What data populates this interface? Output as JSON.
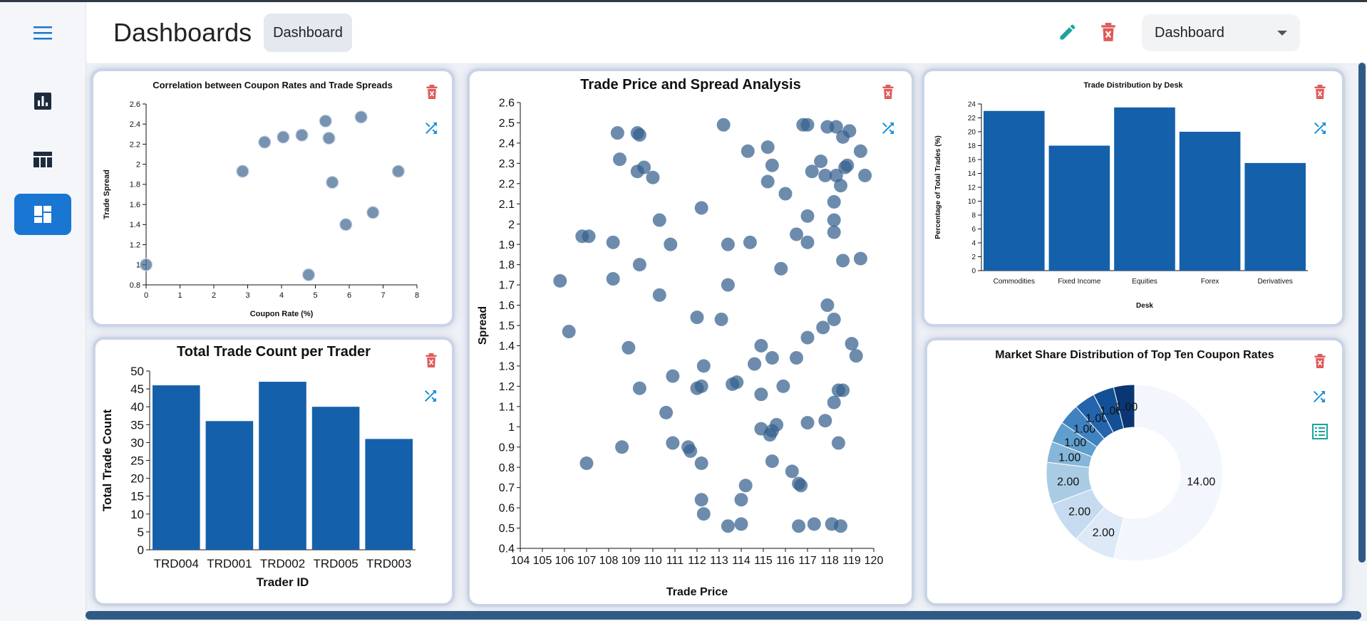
{
  "header": {
    "title": "Dashboards",
    "chip_label": "Dashboard",
    "select_value": "Dashboard"
  },
  "sidebar": {
    "items": [
      {
        "name": "menu-icon"
      },
      {
        "name": "bar-chart-icon"
      },
      {
        "name": "table-icon"
      },
      {
        "name": "dashboard-icon",
        "active": true
      }
    ]
  },
  "colors": {
    "accent": "#1976d2",
    "bar": "#1560aa",
    "point": "#4a6f97",
    "delete": "#e05a5a",
    "shuffle": "#1a8fd6",
    "edit": "#1ba39c"
  },
  "charts": {
    "coupon": {
      "chart_data": {
        "type": "scatter",
        "title": "Correlation between Coupon Rates and Trade Spreads",
        "xlabel": "Coupon Rate (%)",
        "ylabel": "Trade Spread",
        "xlim": [
          0,
          8
        ],
        "ylim": [
          0.8,
          2.6
        ],
        "xticks": [
          "0",
          "1",
          "2",
          "3",
          "4",
          "5",
          "6",
          "7",
          "8"
        ],
        "yticks": [
          "0.8",
          "1",
          "1.2",
          "1.4",
          "1.6",
          "1.8",
          "2",
          "2.2",
          "2.4",
          "2.6"
        ],
        "points": [
          [
            0,
            1.0
          ],
          [
            2.85,
            1.93
          ],
          [
            3.5,
            2.22
          ],
          [
            4.05,
            2.27
          ],
          [
            4.6,
            2.29
          ],
          [
            4.8,
            0.9
          ],
          [
            5.3,
            2.43
          ],
          [
            5.4,
            2.26
          ],
          [
            5.5,
            1.82
          ],
          [
            5.9,
            1.4
          ],
          [
            6.35,
            2.47
          ],
          [
            6.7,
            1.52
          ],
          [
            7.45,
            1.93
          ]
        ]
      }
    },
    "price": {
      "chart_data": {
        "type": "scatter",
        "title": "Trade Price and Spread Analysis",
        "xlabel": "Trade Price",
        "ylabel": "Spread",
        "xlim": [
          104,
          120
        ],
        "ylim": [
          0.4,
          2.6
        ],
        "xticks": [
          "104",
          "105",
          "106",
          "107",
          "108",
          "109",
          "110",
          "111",
          "112",
          "113",
          "114",
          "115",
          "116",
          "117",
          "118",
          "119",
          "120"
        ],
        "yticks": [
          "0.4",
          "0.5",
          "0.6",
          "0.7",
          "0.8",
          "0.9",
          "1",
          "1.1",
          "1.2",
          "1.3",
          "1.4",
          "1.5",
          "1.6",
          "1.7",
          "1.8",
          "1.9",
          "2",
          "2.1",
          "2.2",
          "2.3",
          "2.4",
          "2.5",
          "2.6"
        ],
        "points": [
          [
            108.4,
            2.45
          ],
          [
            109.3,
            2.45
          ],
          [
            109.4,
            2.44
          ],
          [
            108.5,
            2.32
          ],
          [
            109.6,
            2.28
          ],
          [
            109.3,
            2.26
          ],
          [
            110.0,
            2.23
          ],
          [
            110.3,
            2.02
          ],
          [
            112.2,
            2.08
          ],
          [
            113.2,
            2.49
          ],
          [
            114.3,
            2.36
          ],
          [
            115.2,
            2.38
          ],
          [
            115.4,
            2.29
          ],
          [
            115.2,
            2.21
          ],
          [
            116.0,
            2.15
          ],
          [
            116.8,
            2.49
          ],
          [
            117.0,
            2.49
          ],
          [
            117.2,
            2.26
          ],
          [
            117.6,
            2.31
          ],
          [
            117.9,
            2.48
          ],
          [
            118.3,
            2.48
          ],
          [
            118.6,
            2.43
          ],
          [
            118.9,
            2.46
          ],
          [
            117.8,
            2.24
          ],
          [
            118.3,
            2.24
          ],
          [
            118.5,
            2.19
          ],
          [
            118.7,
            2.28
          ],
          [
            118.8,
            2.29
          ],
          [
            119.4,
            2.36
          ],
          [
            119.6,
            2.24
          ],
          [
            118.2,
            2.11
          ],
          [
            118.2,
            2.02
          ],
          [
            118.2,
            1.96
          ],
          [
            117.0,
            2.04
          ],
          [
            116.5,
            1.95
          ],
          [
            117.0,
            1.91
          ],
          [
            118.6,
            1.82
          ],
          [
            119.4,
            1.83
          ],
          [
            115.8,
            1.78
          ],
          [
            114.4,
            1.91
          ],
          [
            113.4,
            1.9
          ],
          [
            110.8,
            1.9
          ],
          [
            108.2,
            1.91
          ],
          [
            106.8,
            1.94
          ],
          [
            107.1,
            1.94
          ],
          [
            105.8,
            1.72
          ],
          [
            108.2,
            1.73
          ],
          [
            109.4,
            1.8
          ],
          [
            110.3,
            1.65
          ],
          [
            113.4,
            1.7
          ],
          [
            106.2,
            1.47
          ],
          [
            108.9,
            1.39
          ],
          [
            112.0,
            1.54
          ],
          [
            113.1,
            1.53
          ],
          [
            117.9,
            1.6
          ],
          [
            118.2,
            1.53
          ],
          [
            117.7,
            1.49
          ],
          [
            117.0,
            1.44
          ],
          [
            114.9,
            1.4
          ],
          [
            115.4,
            1.34
          ],
          [
            114.6,
            1.31
          ],
          [
            116.5,
            1.34
          ],
          [
            119.0,
            1.41
          ],
          [
            119.2,
            1.35
          ],
          [
            110.9,
            1.25
          ],
          [
            112.3,
            1.3
          ],
          [
            112.0,
            1.19
          ],
          [
            112.2,
            1.2
          ],
          [
            113.6,
            1.21
          ],
          [
            113.8,
            1.22
          ],
          [
            114.9,
            1.16
          ],
          [
            115.9,
            1.2
          ],
          [
            109.4,
            1.19
          ],
          [
            118.4,
            1.18
          ],
          [
            118.6,
            1.18
          ],
          [
            118.2,
            1.12
          ],
          [
            110.6,
            1.07
          ],
          [
            114.9,
            0.99
          ],
          [
            115.3,
            0.96
          ],
          [
            115.4,
            0.98
          ],
          [
            115.6,
            1.01
          ],
          [
            117.0,
            1.02
          ],
          [
            117.8,
            1.03
          ],
          [
            108.6,
            0.9
          ],
          [
            110.9,
            0.92
          ],
          [
            111.6,
            0.9
          ],
          [
            111.7,
            0.88
          ],
          [
            118.4,
            0.92
          ],
          [
            107.0,
            0.82
          ],
          [
            112.2,
            0.82
          ],
          [
            115.4,
            0.83
          ],
          [
            116.3,
            0.78
          ],
          [
            116.6,
            0.72
          ],
          [
            116.7,
            0.71
          ],
          [
            114.2,
            0.71
          ],
          [
            112.2,
            0.64
          ],
          [
            112.3,
            0.57
          ],
          [
            114.0,
            0.64
          ],
          [
            113.4,
            0.51
          ],
          [
            114.0,
            0.52
          ],
          [
            116.6,
            0.51
          ],
          [
            117.3,
            0.52
          ],
          [
            118.1,
            0.52
          ],
          [
            118.5,
            0.51
          ]
        ]
      }
    },
    "desk": {
      "chart_data": {
        "type": "bar",
        "title": "Trade Distribution by Desk",
        "xlabel": "Desk",
        "ylabel": "Percentage of Total Trades (%)",
        "categories": [
          "Commodities",
          "Fixed Income",
          "Equities",
          "Forex",
          "Derivatives"
        ],
        "values": [
          23,
          18,
          23.5,
          20,
          15.5
        ],
        "ylim": [
          0,
          24
        ],
        "yticks": [
          "0",
          "2",
          "4",
          "6",
          "8",
          "10",
          "12",
          "14",
          "16",
          "18",
          "20",
          "22",
          "24"
        ]
      }
    },
    "trader": {
      "chart_data": {
        "type": "bar",
        "title": "Total Trade Count per Trader",
        "xlabel": "Trader ID",
        "ylabel": "Total Trade Count",
        "categories": [
          "TRD004",
          "TRD001",
          "TRD002",
          "TRD005",
          "TRD003"
        ],
        "values": [
          46,
          36,
          47,
          40,
          31
        ],
        "ylim": [
          0,
          50
        ],
        "yticks": [
          "0",
          "5",
          "10",
          "15",
          "20",
          "25",
          "30",
          "35",
          "40",
          "45",
          "50"
        ]
      }
    },
    "market": {
      "chart_data": {
        "type": "pie",
        "donut": true,
        "title": "Market Share Distribution of Top Ten Coupon Rates",
        "values": [
          14,
          2,
          2,
          2,
          1,
          1,
          1,
          1,
          1,
          1
        ],
        "labels": [
          "14.00",
          "2.00",
          "2.00",
          "2.00",
          "1.00",
          "1.00",
          "1.00",
          "1.00",
          "1.00",
          "1.00"
        ],
        "colors": [
          "#f3f7fd",
          "#dde9f6",
          "#c6dbef",
          "#a9cce4",
          "#86b6d9",
          "#5f9fcd",
          "#3f82c0",
          "#2464ad",
          "#134f94",
          "#0a3673"
        ]
      }
    }
  }
}
